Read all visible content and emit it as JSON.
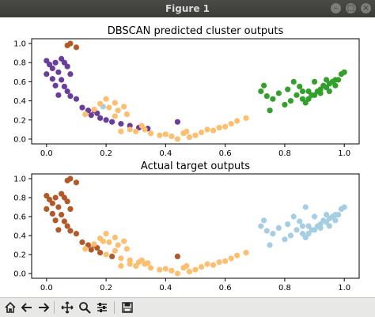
{
  "window": {
    "title": "Figure 1"
  },
  "colors": {
    "blue": "#a6cee3",
    "orange": "#fdbf6f",
    "purple": "#6a3d9a",
    "green": "#33a02c",
    "brown": "#b15928"
  },
  "toolbar": {
    "icons": [
      "home-icon",
      "back-arrow-icon",
      "forward-arrow-icon",
      "pan-icon",
      "zoom-icon",
      "configure-subplots-icon",
      "save-icon"
    ]
  },
  "chart_data": [
    {
      "type": "scatter",
      "title": "DBSCAN predicted cluster outputs",
      "xlabel": "",
      "ylabel": "",
      "xlim": [
        -0.05,
        1.05
      ],
      "ylim": [
        -0.05,
        1.05
      ],
      "xticks": [
        "0.0",
        "0.2",
        "0.4",
        "0.6",
        "0.8",
        "1.0"
      ],
      "yticks": [
        "0.0",
        "0.2",
        "0.4",
        "0.6",
        "0.8",
        "1.0"
      ],
      "grid": false,
      "series": [
        {
          "color": "#b15928",
          "points": [
            [
              0.08,
              1.0
            ],
            [
              0.07,
              0.98
            ],
            [
              0.1,
              0.96
            ]
          ]
        },
        {
          "color": "#6a3d9a",
          "points": [
            [
              0.0,
              0.82
            ],
            [
              0.01,
              0.78
            ],
            [
              0.03,
              0.8
            ],
            [
              0.02,
              0.74
            ],
            [
              0.05,
              0.84
            ],
            [
              0.06,
              0.8
            ],
            [
              0.04,
              0.7
            ],
            [
              0.07,
              0.76
            ],
            [
              0.08,
              0.68
            ],
            [
              0.0,
              0.68
            ],
            [
              0.02,
              0.63
            ],
            [
              0.05,
              0.62
            ],
            [
              0.03,
              0.56
            ],
            [
              0.06,
              0.55
            ],
            [
              0.07,
              0.5
            ],
            [
              0.04,
              0.46
            ],
            [
              0.08,
              0.45
            ],
            [
              0.1,
              0.42
            ],
            [
              0.12,
              0.33
            ],
            [
              0.14,
              0.3
            ],
            [
              0.15,
              0.25
            ],
            [
              0.16,
              0.3
            ],
            [
              0.17,
              0.27
            ],
            [
              0.18,
              0.22
            ],
            [
              0.2,
              0.2
            ],
            [
              0.22,
              0.18
            ],
            [
              0.25,
              0.16
            ],
            [
              0.28,
              0.14
            ],
            [
              0.31,
              0.12
            ],
            [
              0.34,
              0.11
            ],
            [
              0.44,
              0.18
            ]
          ]
        },
        {
          "color": "#a6cee3",
          "points": [
            [
              0.19,
              0.34
            ]
          ]
        },
        {
          "color": "#fdbf6f",
          "points": [
            [
              0.13,
              0.26
            ],
            [
              0.16,
              0.31
            ],
            [
              0.18,
              0.37
            ],
            [
              0.2,
              0.42
            ],
            [
              0.21,
              0.33
            ],
            [
              0.23,
              0.38
            ],
            [
              0.24,
              0.3
            ],
            [
              0.26,
              0.34
            ],
            [
              0.27,
              0.26
            ],
            [
              0.23,
              0.24
            ],
            [
              0.25,
              0.08
            ],
            [
              0.28,
              0.1
            ],
            [
              0.3,
              0.08
            ],
            [
              0.32,
              0.14
            ],
            [
              0.35,
              0.06
            ],
            [
              0.38,
              0.04
            ],
            [
              0.4,
              0.05
            ],
            [
              0.42,
              0.03
            ],
            [
              0.44,
              0.0
            ],
            [
              0.46,
              0.06
            ],
            [
              0.48,
              0.02
            ],
            [
              0.5,
              0.04
            ],
            [
              0.52,
              0.07
            ],
            [
              0.54,
              0.1
            ],
            [
              0.56,
              0.09
            ],
            [
              0.58,
              0.12
            ],
            [
              0.6,
              0.13
            ],
            [
              0.62,
              0.16
            ],
            [
              0.64,
              0.19
            ],
            [
              0.67,
              0.22
            ],
            [
              0.47,
              0.08
            ],
            [
              0.33,
              0.1
            ]
          ]
        },
        {
          "color": "#33a02c",
          "points": [
            [
              0.72,
              0.5
            ],
            [
              0.73,
              0.56
            ],
            [
              0.74,
              0.45
            ],
            [
              0.75,
              0.3
            ],
            [
              0.76,
              0.42
            ],
            [
              0.78,
              0.48
            ],
            [
              0.8,
              0.36
            ],
            [
              0.81,
              0.52
            ],
            [
              0.82,
              0.4
            ],
            [
              0.84,
              0.46
            ],
            [
              0.85,
              0.55
            ],
            [
              0.86,
              0.42
            ],
            [
              0.87,
              0.38
            ],
            [
              0.88,
              0.5
            ],
            [
              0.89,
              0.46
            ],
            [
              0.9,
              0.6
            ],
            [
              0.91,
              0.5
            ],
            [
              0.92,
              0.52
            ],
            [
              0.93,
              0.56
            ],
            [
              0.94,
              0.54
            ],
            [
              0.95,
              0.58
            ],
            [
              0.96,
              0.6
            ],
            [
              0.97,
              0.62
            ],
            [
              0.98,
              0.62
            ],
            [
              0.99,
              0.68
            ],
            [
              1.0,
              0.7
            ],
            [
              0.83,
              0.6
            ],
            [
              0.86,
              0.5
            ],
            [
              0.88,
              0.42
            ],
            [
              0.92,
              0.48
            ],
            [
              0.95,
              0.5
            ],
            [
              0.97,
              0.56
            ],
            [
              0.9,
              0.46
            ],
            [
              0.94,
              0.62
            ]
          ]
        }
      ]
    },
    {
      "type": "scatter",
      "title": "Actual target outputs",
      "xlabel": "",
      "ylabel": "",
      "xlim": [
        -0.05,
        1.05
      ],
      "ylim": [
        -0.05,
        1.05
      ],
      "xticks": [
        "0.0",
        "0.2",
        "0.4",
        "0.6",
        "0.8",
        "1.0"
      ],
      "yticks": [
        "0.0",
        "0.2",
        "0.4",
        "0.6",
        "0.8",
        "1.0"
      ],
      "grid": false,
      "series": [
        {
          "color": "#b15928",
          "points": [
            [
              0.08,
              1.0
            ],
            [
              0.07,
              0.98
            ],
            [
              0.1,
              0.96
            ],
            [
              0.0,
              0.82
            ],
            [
              0.01,
              0.78
            ],
            [
              0.03,
              0.8
            ],
            [
              0.02,
              0.74
            ],
            [
              0.05,
              0.84
            ],
            [
              0.06,
              0.8
            ],
            [
              0.04,
              0.7
            ],
            [
              0.07,
              0.76
            ],
            [
              0.08,
              0.68
            ],
            [
              0.0,
              0.68
            ],
            [
              0.02,
              0.63
            ],
            [
              0.05,
              0.62
            ],
            [
              0.03,
              0.56
            ],
            [
              0.06,
              0.55
            ],
            [
              0.07,
              0.5
            ],
            [
              0.04,
              0.46
            ],
            [
              0.08,
              0.45
            ],
            [
              0.1,
              0.42
            ],
            [
              0.12,
              0.33
            ],
            [
              0.14,
              0.3
            ],
            [
              0.15,
              0.25
            ],
            [
              0.16,
              0.3
            ],
            [
              0.17,
              0.27
            ],
            [
              0.18,
              0.22
            ],
            [
              0.22,
              0.18
            ],
            [
              0.44,
              0.18
            ]
          ]
        },
        {
          "color": "#fdbf6f",
          "points": [
            [
              0.13,
              0.26
            ],
            [
              0.16,
              0.31
            ],
            [
              0.18,
              0.37
            ],
            [
              0.2,
              0.42
            ],
            [
              0.21,
              0.33
            ],
            [
              0.23,
              0.38
            ],
            [
              0.24,
              0.3
            ],
            [
              0.26,
              0.34
            ],
            [
              0.27,
              0.26
            ],
            [
              0.23,
              0.24
            ],
            [
              0.25,
              0.08
            ],
            [
              0.28,
              0.1
            ],
            [
              0.3,
              0.08
            ],
            [
              0.32,
              0.14
            ],
            [
              0.35,
              0.06
            ],
            [
              0.38,
              0.04
            ],
            [
              0.4,
              0.05
            ],
            [
              0.42,
              0.03
            ],
            [
              0.44,
              0.0
            ],
            [
              0.46,
              0.06
            ],
            [
              0.48,
              0.02
            ],
            [
              0.5,
              0.04
            ],
            [
              0.52,
              0.07
            ],
            [
              0.54,
              0.1
            ],
            [
              0.56,
              0.09
            ],
            [
              0.58,
              0.12
            ],
            [
              0.6,
              0.13
            ],
            [
              0.62,
              0.16
            ],
            [
              0.64,
              0.19
            ],
            [
              0.67,
              0.22
            ],
            [
              0.47,
              0.08
            ],
            [
              0.33,
              0.1
            ],
            [
              0.19,
              0.34
            ],
            [
              0.2,
              0.2
            ],
            [
              0.25,
              0.16
            ],
            [
              0.28,
              0.14
            ],
            [
              0.31,
              0.12
            ],
            [
              0.34,
              0.11
            ]
          ]
        },
        {
          "color": "#a6cee3",
          "points": [
            [
              0.72,
              0.5
            ],
            [
              0.73,
              0.56
            ],
            [
              0.74,
              0.45
            ],
            [
              0.75,
              0.3
            ],
            [
              0.76,
              0.42
            ],
            [
              0.78,
              0.48
            ],
            [
              0.8,
              0.36
            ],
            [
              0.81,
              0.52
            ],
            [
              0.82,
              0.4
            ],
            [
              0.84,
              0.46
            ],
            [
              0.85,
              0.55
            ],
            [
              0.86,
              0.42
            ],
            [
              0.87,
              0.38
            ],
            [
              0.88,
              0.5
            ],
            [
              0.89,
              0.46
            ],
            [
              0.9,
              0.6
            ],
            [
              0.91,
              0.5
            ],
            [
              0.92,
              0.52
            ],
            [
              0.93,
              0.56
            ],
            [
              0.94,
              0.54
            ],
            [
              0.95,
              0.58
            ],
            [
              0.96,
              0.6
            ],
            [
              0.97,
              0.62
            ],
            [
              0.98,
              0.62
            ],
            [
              0.99,
              0.68
            ],
            [
              1.0,
              0.7
            ],
            [
              0.83,
              0.6
            ],
            [
              0.86,
              0.5
            ],
            [
              0.88,
              0.42
            ],
            [
              0.92,
              0.48
            ],
            [
              0.95,
              0.5
            ],
            [
              0.97,
              0.56
            ],
            [
              0.9,
              0.46
            ],
            [
              0.94,
              0.62
            ],
            [
              0.87,
              0.7
            ]
          ]
        }
      ]
    }
  ]
}
